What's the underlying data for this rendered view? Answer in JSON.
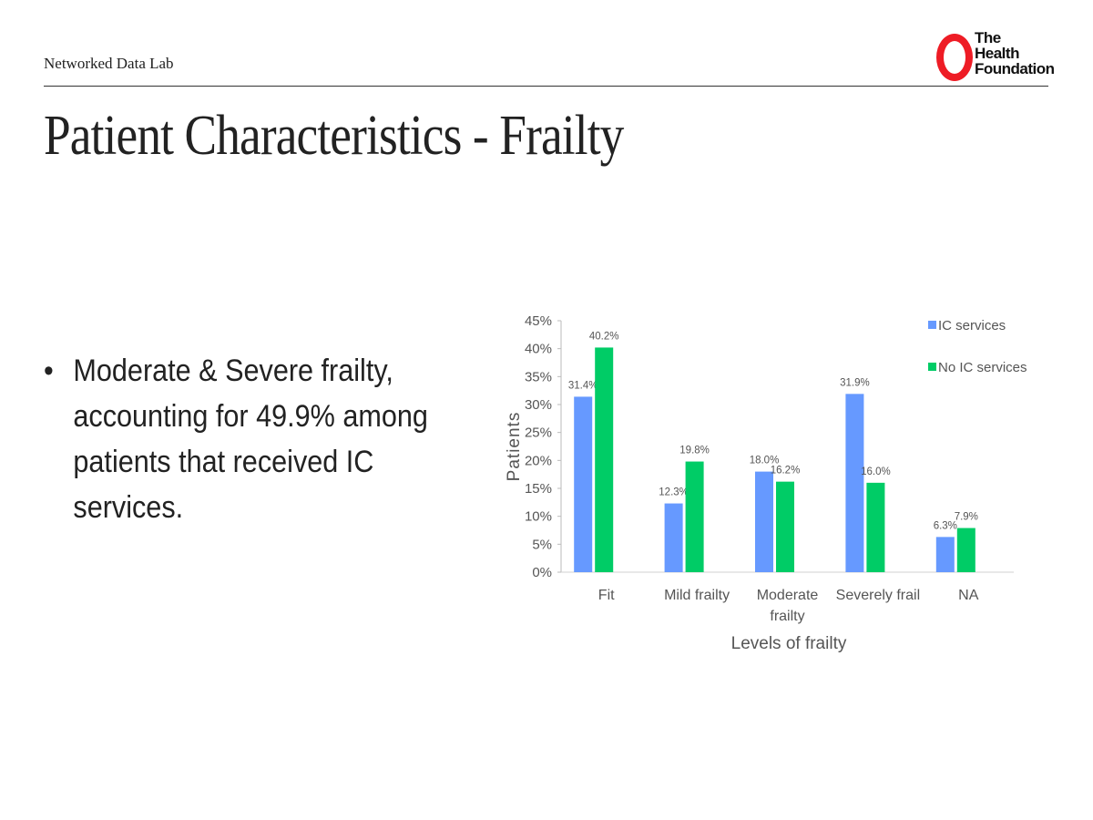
{
  "header": {
    "org": "Networked Data Lab",
    "logo_text": [
      "The",
      "Health",
      "Foundation"
    ]
  },
  "title": "Patient Characteristics - Frailty",
  "bullet": {
    "marker": "•",
    "text": "Moderate & Severe frailty, accounting for 49.9% among  patients that received IC services."
  },
  "chart_data": {
    "type": "bar",
    "title": "",
    "xlabel": "Levels of frailty",
    "ylabel": "Patients",
    "ylim": [
      0,
      45
    ],
    "yticks": [
      "0%",
      "5%",
      "10%",
      "15%",
      "20%",
      "25%",
      "30%",
      "35%",
      "40%",
      "45%"
    ],
    "categories": [
      [
        "Fit"
      ],
      [
        "Mild frailty"
      ],
      [
        "Moderate",
        "frailty"
      ],
      [
        "Severely frail"
      ],
      [
        "NA"
      ]
    ],
    "series": [
      {
        "name": "IC services",
        "color": "#6699ff",
        "values": [
          31.4,
          12.3,
          18.0,
          31.9,
          6.3
        ],
        "labels": [
          "31.4%",
          "12.3%",
          "18.0%",
          "31.9%",
          "6.3%"
        ]
      },
      {
        "name": "No IC services",
        "color": "#00cc66",
        "values": [
          40.2,
          19.8,
          16.2,
          16.0,
          7.9
        ],
        "labels": [
          "40.2%",
          "19.8%",
          "16.2%",
          "16.0%",
          "7.9%"
        ]
      }
    ],
    "legend": "top-right",
    "grid": false
  }
}
